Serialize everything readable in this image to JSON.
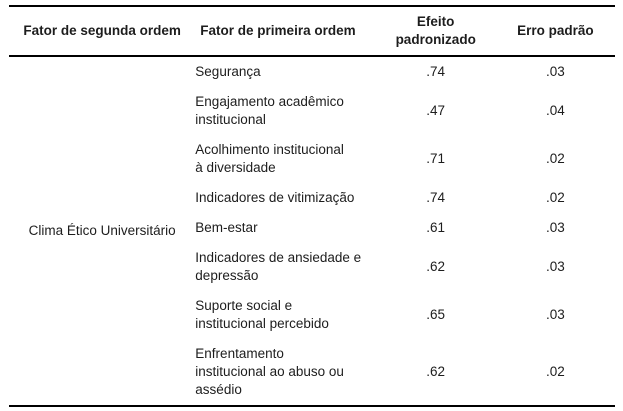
{
  "table": {
    "headers": {
      "second_order": "Fator de segunda ordem",
      "first_order": "Fator de primeira ordem",
      "effect": "Efeito\npadronizado",
      "se": "Erro padrão"
    },
    "second_order_factor": "Clima Ético Universitário",
    "rows": [
      {
        "first_order_factor": "Segurança",
        "standardized_effect": ".74",
        "standard_error": ".03"
      },
      {
        "first_order_factor": "Engajamento acadêmico\ninstitucional",
        "standardized_effect": ".47",
        "standard_error": ".04"
      },
      {
        "first_order_factor": "Acolhimento institucional\nà diversidade",
        "standardized_effect": ".71",
        "standard_error": ".02"
      },
      {
        "first_order_factor": "Indicadores de vitimização",
        "standardized_effect": ".74",
        "standard_error": ".02"
      },
      {
        "first_order_factor": "Bem-estar",
        "standardized_effect": ".61",
        "standard_error": ".03"
      },
      {
        "first_order_factor": "Indicadores de ansiedade e\ndepressão",
        "standardized_effect": ".62",
        "standard_error": ".03"
      },
      {
        "first_order_factor": "Suporte social e\ninstitucional percebido",
        "standardized_effect": ".65",
        "standard_error": ".03"
      },
      {
        "first_order_factor": "Enfrentamento\ninstitucional ao abuso ou\nassédio",
        "standardized_effect": ".62",
        "standard_error": ".02"
      }
    ]
  }
}
